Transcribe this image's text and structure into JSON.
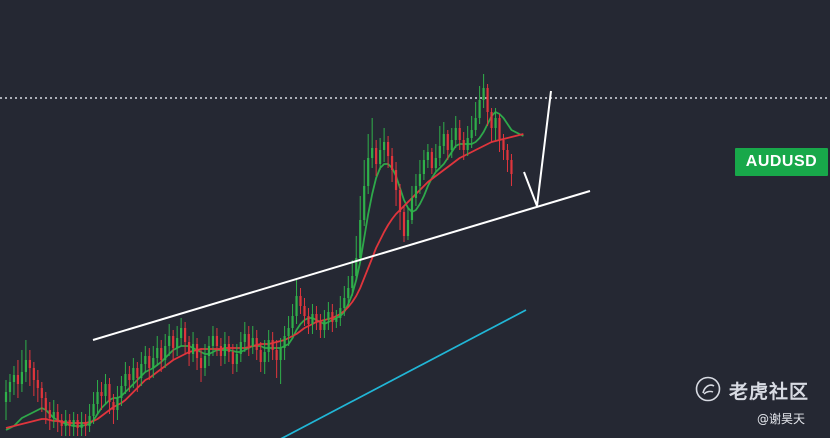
{
  "symbol": "AUDUSD",
  "watermark": {
    "brand": "老虎社区",
    "author": "@谢昊天"
  },
  "colors": {
    "background": "#252833",
    "up_candle": "#2fb04a",
    "down_candle": "#e0353c",
    "ma_fast": "#2ea84a",
    "ma_mid": "#e0353c",
    "ma_slow": "#21b6d6",
    "trendline": "#ffffff",
    "badge": "#18a84a"
  },
  "chart_data": {
    "type": "candlestick",
    "grid": false,
    "candles": [
      [
        402,
        392,
        380,
        420
      ],
      [
        392,
        382,
        374,
        402
      ],
      [
        382,
        375,
        366,
        395
      ],
      [
        375,
        384,
        360,
        398
      ],
      [
        384,
        372,
        350,
        392
      ],
      [
        372,
        360,
        340,
        382
      ],
      [
        360,
        368,
        350,
        386
      ],
      [
        368,
        380,
        362,
        396
      ],
      [
        380,
        388,
        370,
        402
      ],
      [
        388,
        398,
        382,
        412
      ],
      [
        398,
        410,
        392,
        424
      ],
      [
        410,
        418,
        402,
        430
      ],
      [
        418,
        412,
        400,
        428
      ],
      [
        412,
        420,
        404,
        432
      ],
      [
        420,
        426,
        414,
        436
      ],
      [
        426,
        420,
        410,
        436
      ],
      [
        420,
        426,
        414,
        436
      ],
      [
        426,
        420,
        412,
        436
      ],
      [
        420,
        428,
        414,
        436
      ],
      [
        428,
        422,
        412,
        436
      ],
      [
        422,
        426,
        414,
        436
      ],
      [
        426,
        416,
        404,
        432
      ],
      [
        416,
        404,
        392,
        424
      ],
      [
        404,
        392,
        380,
        414
      ],
      [
        392,
        396,
        382,
        410
      ],
      [
        396,
        384,
        374,
        404
      ],
      [
        384,
        402,
        378,
        414
      ],
      [
        402,
        410,
        394,
        424
      ],
      [
        410,
        398,
        386,
        420
      ],
      [
        398,
        386,
        376,
        406
      ],
      [
        386,
        374,
        362,
        394
      ],
      [
        374,
        380,
        366,
        392
      ],
      [
        380,
        368,
        358,
        388
      ],
      [
        368,
        378,
        362,
        392
      ],
      [
        378,
        364,
        352,
        386
      ],
      [
        364,
        356,
        346,
        372
      ],
      [
        356,
        368,
        348,
        380
      ],
      [
        368,
        358,
        346,
        378
      ],
      [
        358,
        348,
        336,
        366
      ],
      [
        348,
        360,
        340,
        372
      ],
      [
        360,
        346,
        334,
        368
      ],
      [
        346,
        336,
        324,
        356
      ],
      [
        336,
        348,
        330,
        360
      ],
      [
        348,
        338,
        326,
        356
      ],
      [
        338,
        328,
        318,
        346
      ],
      [
        328,
        342,
        322,
        354
      ],
      [
        342,
        354,
        336,
        366
      ],
      [
        354,
        344,
        332,
        362
      ],
      [
        344,
        358,
        338,
        370
      ],
      [
        358,
        368,
        348,
        382
      ],
      [
        368,
        356,
        344,
        376
      ],
      [
        356,
        346,
        336,
        366
      ],
      [
        346,
        336,
        326,
        356
      ],
      [
        336,
        346,
        328,
        356
      ],
      [
        346,
        356,
        338,
        366
      ],
      [
        356,
        344,
        332,
        364
      ],
      [
        344,
        352,
        336,
        362
      ],
      [
        352,
        364,
        344,
        374
      ],
      [
        364,
        354,
        344,
        372
      ],
      [
        354,
        342,
        332,
        362
      ],
      [
        342,
        334,
        322,
        352
      ],
      [
        334,
        346,
        326,
        356
      ],
      [
        346,
        338,
        326,
        354
      ],
      [
        338,
        350,
        330,
        360
      ],
      [
        350,
        362,
        342,
        372
      ],
      [
        362,
        352,
        340,
        374
      ],
      [
        352,
        340,
        330,
        362
      ],
      [
        340,
        350,
        332,
        360
      ],
      [
        350,
        360,
        340,
        378
      ],
      [
        360,
        348,
        338,
        384
      ],
      [
        348,
        336,
        326,
        360
      ],
      [
        336,
        328,
        316,
        346
      ],
      [
        328,
        316,
        304,
        336
      ],
      [
        316,
        296,
        280,
        324
      ],
      [
        296,
        306,
        288,
        314
      ],
      [
        306,
        316,
        298,
        326
      ],
      [
        316,
        324,
        308,
        334
      ],
      [
        324,
        314,
        304,
        334
      ],
      [
        314,
        322,
        306,
        330
      ],
      [
        322,
        330,
        314,
        338
      ],
      [
        330,
        320,
        310,
        338
      ],
      [
        320,
        312,
        302,
        330
      ],
      [
        312,
        322,
        304,
        332
      ],
      [
        322,
        318,
        310,
        328
      ],
      [
        318,
        308,
        296,
        326
      ],
      [
        308,
        298,
        286,
        316
      ],
      [
        298,
        288,
        276,
        306
      ],
      [
        288,
        276,
        260,
        296
      ],
      [
        276,
        258,
        236,
        280
      ],
      [
        258,
        220,
        196,
        262
      ],
      [
        220,
        186,
        160,
        226
      ],
      [
        186,
        158,
        134,
        194
      ],
      [
        158,
        148,
        118,
        168
      ],
      [
        148,
        164,
        140,
        176
      ],
      [
        164,
        150,
        138,
        170
      ],
      [
        150,
        142,
        128,
        162
      ],
      [
        142,
        156,
        136,
        168
      ],
      [
        156,
        170,
        148,
        182
      ],
      [
        170,
        190,
        162,
        206
      ],
      [
        190,
        212,
        184,
        230
      ],
      [
        212,
        236,
        206,
        242
      ],
      [
        236,
        220,
        208,
        240
      ],
      [
        220,
        198,
        186,
        224
      ],
      [
        198,
        186,
        174,
        206
      ],
      [
        186,
        174,
        160,
        194
      ],
      [
        174,
        160,
        150,
        180
      ],
      [
        160,
        152,
        144,
        168
      ],
      [
        152,
        168,
        148,
        174
      ],
      [
        168,
        158,
        144,
        172
      ],
      [
        158,
        146,
        126,
        166
      ],
      [
        146,
        134,
        122,
        154
      ],
      [
        134,
        150,
        130,
        160
      ],
      [
        150,
        140,
        128,
        158
      ],
      [
        140,
        128,
        116,
        148
      ],
      [
        128,
        140,
        120,
        150
      ],
      [
        140,
        150,
        132,
        160
      ],
      [
        150,
        138,
        126,
        156
      ],
      [
        138,
        130,
        116,
        148
      ],
      [
        130,
        118,
        102,
        136
      ],
      [
        118,
        100,
        86,
        124
      ],
      [
        100,
        88,
        74,
        108
      ],
      [
        88,
        112,
        84,
        126
      ],
      [
        112,
        128,
        108,
        142
      ],
      [
        128,
        118,
        108,
        140
      ],
      [
        118,
        140,
        114,
        152
      ],
      [
        140,
        150,
        134,
        160
      ],
      [
        150,
        160,
        144,
        172
      ],
      [
        160,
        174,
        154,
        186
      ]
    ],
    "moving_averages": [
      {
        "name": "",
        "values": [
          430,
          428,
          426,
          422,
          418,
          416,
          414,
          412,
          410,
          408,
          410,
          414,
          418,
          420,
          422,
          424,
          425,
          426,
          426,
          426,
          425,
          424,
          420,
          414,
          408,
          404,
          400,
          398,
          398,
          396,
          392,
          388,
          384,
          380,
          376,
          372,
          370,
          368,
          365,
          362,
          358,
          354,
          350,
          348,
          346,
          346,
          346,
          348,
          350,
          352,
          354,
          354,
          352,
          350,
          350,
          350,
          350,
          351,
          352,
          352,
          350,
          348,
          346,
          346,
          346,
          348,
          348,
          348,
          348,
          348,
          346,
          344,
          338,
          330,
          324,
          320,
          318,
          318,
          320,
          322,
          324,
          322,
          320,
          318,
          316,
          312,
          304,
          294,
          280,
          262,
          238,
          214,
          194,
          178,
          168,
          164,
          164,
          168,
          176,
          188,
          200,
          208,
          212,
          210,
          204,
          196,
          186,
          178,
          172,
          168,
          164,
          158,
          152,
          146,
          144,
          144,
          144,
          144,
          142,
          138,
          132,
          124,
          116,
          112,
          114,
          118,
          124,
          130,
          132,
          134,
          136
        ]
      },
      {
        "name": "",
        "values": [
          428,
          427,
          426,
          425,
          424,
          423,
          422,
          421,
          420,
          419,
          419,
          420,
          421,
          421,
          422,
          422,
          423,
          423,
          423,
          423,
          423,
          422,
          421,
          419,
          416,
          413,
          410,
          407,
          405,
          403,
          400,
          396,
          392,
          388,
          384,
          380,
          378,
          375,
          372,
          369,
          366,
          363,
          360,
          358,
          356,
          354,
          352,
          351,
          350,
          349,
          349,
          349,
          349,
          349,
          349,
          348,
          348,
          348,
          348,
          348,
          348,
          347,
          346,
          345,
          344,
          344,
          344,
          343,
          342,
          341,
          340,
          338,
          336,
          334,
          331,
          328,
          326,
          324,
          322,
          321,
          320,
          319,
          318,
          316,
          314,
          311,
          307,
          302,
          296,
          288,
          278,
          268,
          258,
          248,
          240,
          232,
          225,
          219,
          214,
          210,
          206,
          202,
          198,
          194,
          190,
          186,
          182,
          179,
          176,
          173,
          170,
          167,
          164,
          161,
          158,
          156,
          154,
          152,
          150,
          148,
          146,
          144,
          142,
          141,
          140,
          139,
          138,
          137,
          136,
          135,
          134
        ]
      },
      {
        "name": "",
        "values": [
          454,
          452,
          450,
          448,
          446,
          444,
          442,
          440,
          438,
          436,
          434,
          432,
          430,
          428,
          426,
          424,
          422,
          420,
          418,
          416,
          414,
          412,
          410,
          408,
          406,
          404,
          402,
          400,
          398,
          396,
          394,
          392,
          390,
          388,
          386,
          384,
          382,
          380,
          378,
          376,
          374,
          372,
          370,
          368,
          366,
          364,
          362,
          360,
          358,
          356,
          354,
          352,
          350,
          348,
          346,
          344,
          342,
          340,
          338,
          336,
          334,
          332,
          330,
          328,
          326,
          324,
          322,
          320,
          318,
          316,
          314,
          312,
          310
        ]
      }
    ]
  }
}
